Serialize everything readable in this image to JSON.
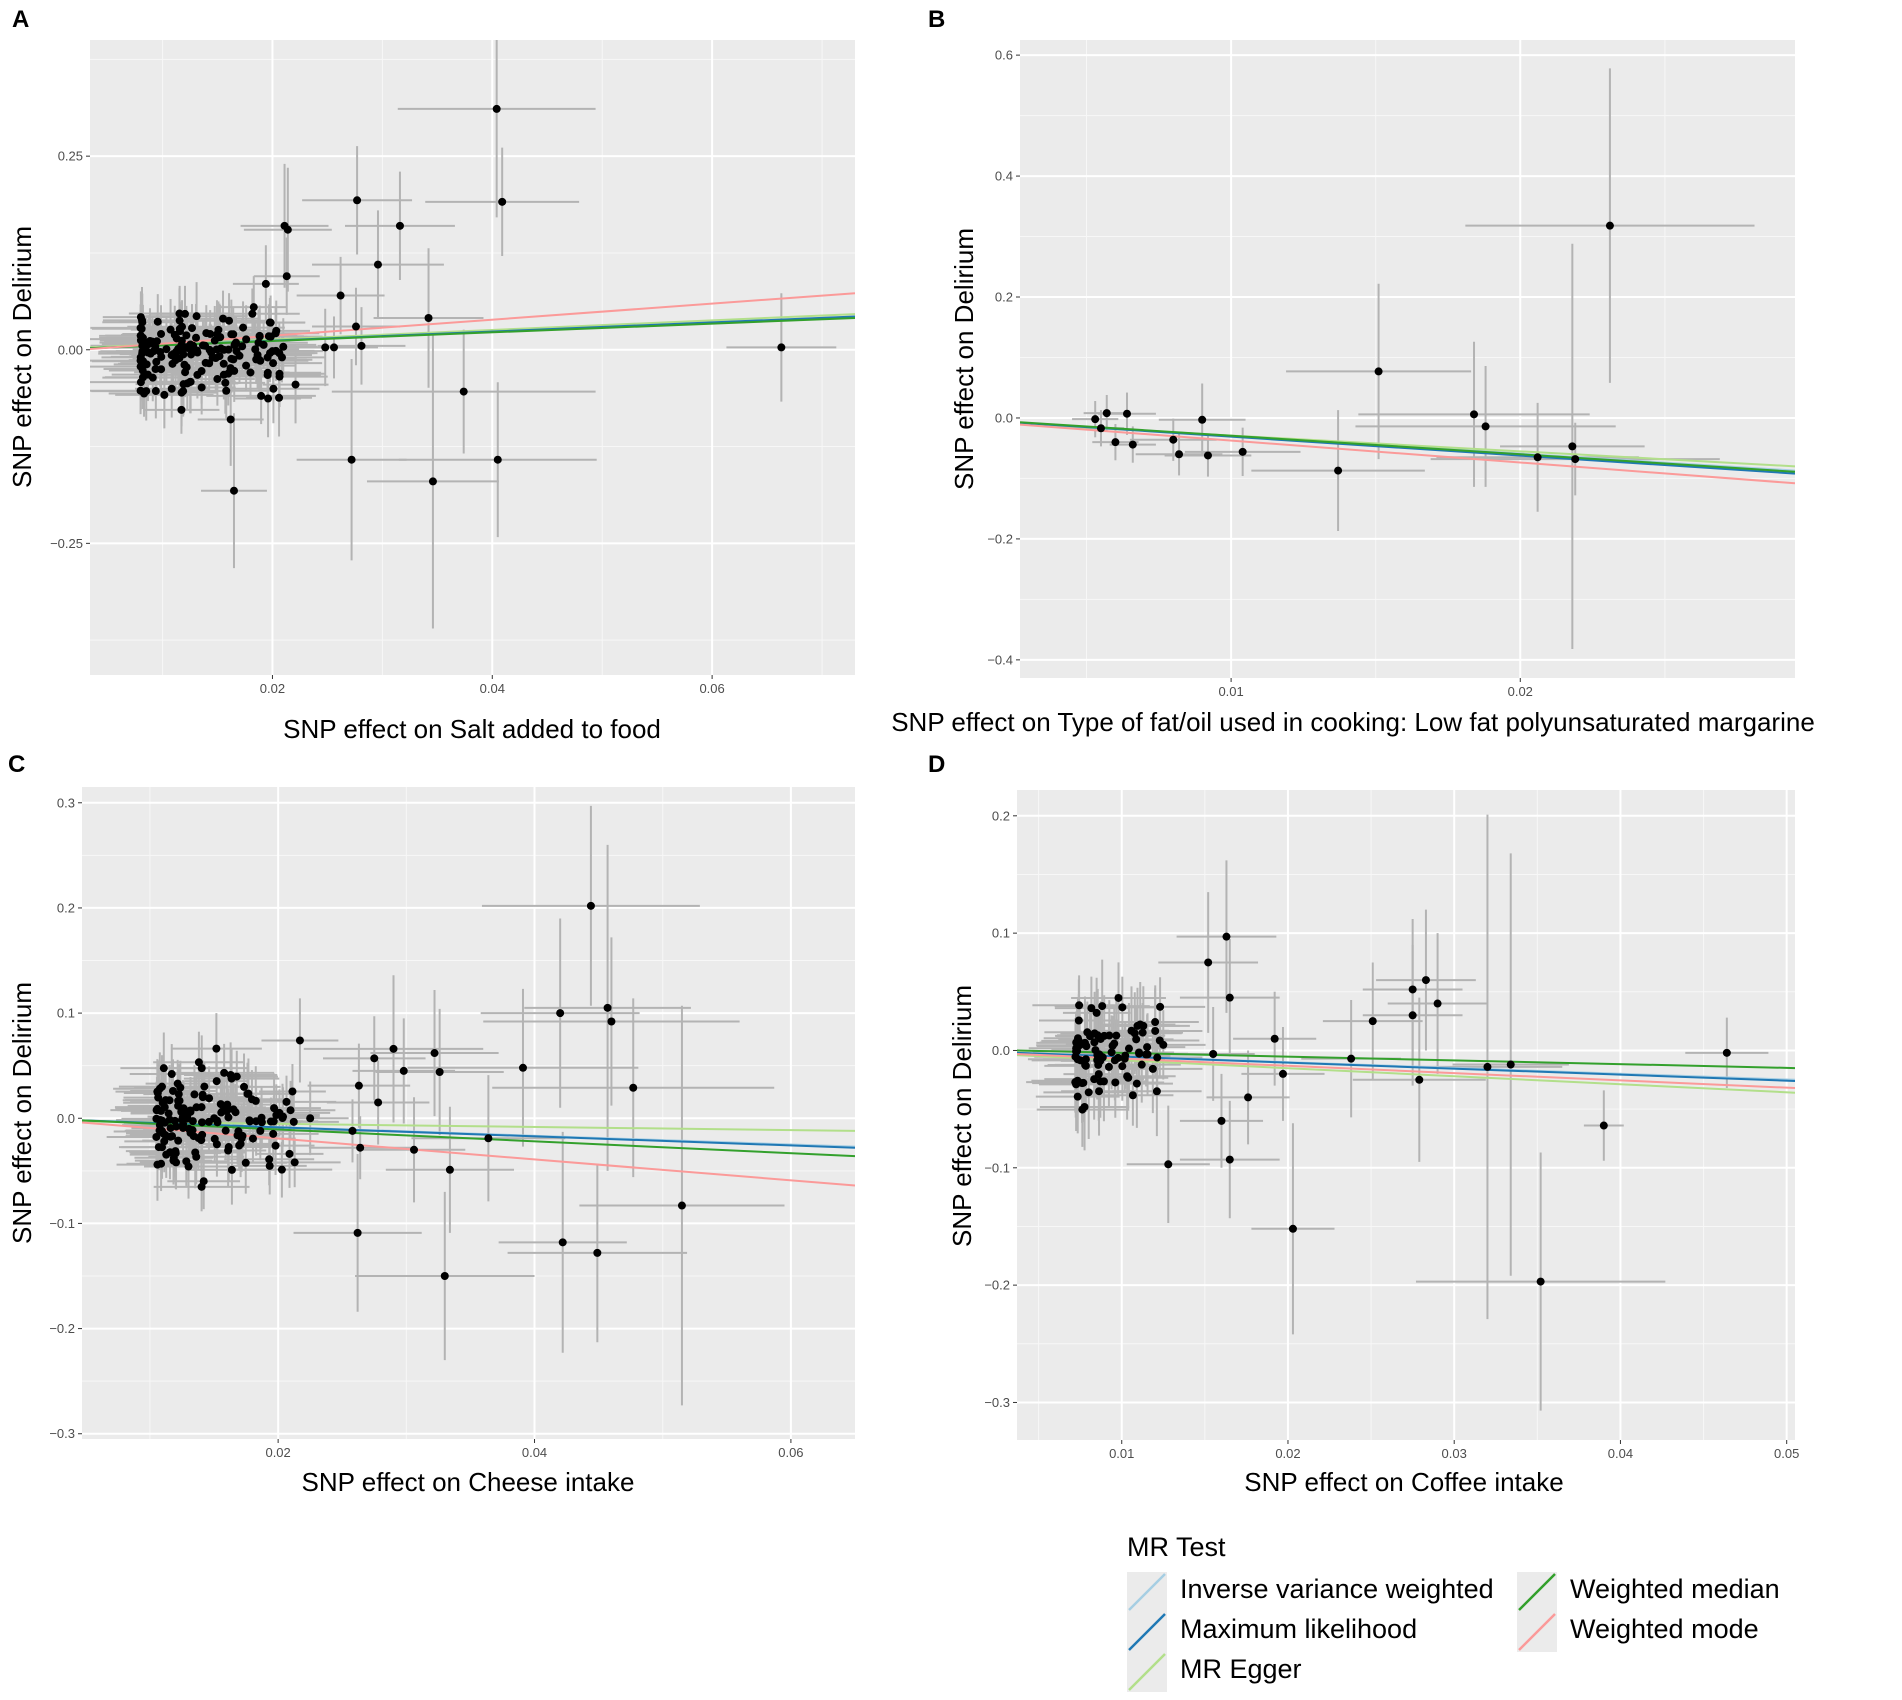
{
  "legend": {
    "title": "MR Test",
    "items": [
      {
        "label": "Inverse variance weighted",
        "color": "#a6cee3"
      },
      {
        "label": "Maximum likelihood",
        "color": "#1f78b4"
      },
      {
        "label": "MR Egger",
        "color": "#b2df8a"
      },
      {
        "label": "Weighted median",
        "color": "#33a02c"
      },
      {
        "label": "Weighted mode",
        "color": "#fb9a99"
      }
    ]
  },
  "chart_data": [
    {
      "panel": "A",
      "type": "scatter",
      "xlabel": "SNP effect on Salt added to food",
      "ylabel": "SNP effect on Delirium",
      "xlim": [
        0.0034,
        0.073
      ],
      "ylim": [
        -0.42,
        0.4
      ],
      "xticks": [
        {
          "v": 0.02,
          "label": "0.02"
        },
        {
          "v": 0.04,
          "label": "0.04"
        },
        {
          "v": 0.06,
          "label": "0.06"
        }
      ],
      "yticks": [
        {
          "v": 0.25,
          "label": "0.25"
        },
        {
          "v": 0.0,
          "label": "0.00"
        },
        {
          "v": -0.25,
          "label": "−0.25"
        }
      ],
      "dense_cluster": {
        "n": 170,
        "x_range": [
          0.008,
          0.021
        ],
        "y_center": 0.0,
        "y_sd": 0.026,
        "x_se_range": [
          0.003,
          0.005
        ],
        "y_se_range": [
          0.03,
          0.045
        ]
      },
      "points": [
        [
          0.0404,
          0.311,
          0.009,
          0.14
        ],
        [
          0.0409,
          0.191,
          0.007,
          0.07
        ],
        [
          0.0277,
          0.193,
          0.005,
          0.07
        ],
        [
          0.0316,
          0.16,
          0.005,
          0.07
        ],
        [
          0.0296,
          0.11,
          0.006,
          0.07
        ],
        [
          0.0214,
          0.155,
          0.004,
          0.08
        ],
        [
          0.0211,
          0.16,
          0.004,
          0.08
        ],
        [
          0.0342,
          0.041,
          0.005,
          0.09
        ],
        [
          0.0374,
          -0.054,
          0.012,
          0.08
        ],
        [
          0.0272,
          -0.142,
          0.005,
          0.13
        ],
        [
          0.0346,
          -0.17,
          0.006,
          0.19
        ],
        [
          0.0405,
          -0.142,
          0.009,
          0.1
        ],
        [
          0.0663,
          0.003,
          0.005,
          0.07
        ],
        [
          0.0165,
          -0.182,
          0.003,
          0.1
        ],
        [
          0.0248,
          0.003,
          0.004,
          0.05
        ],
        [
          0.0262,
          0.07,
          0.004,
          0.05
        ],
        [
          0.0276,
          0.03,
          0.004,
          0.05
        ],
        [
          0.0281,
          0.005,
          0.004,
          0.05
        ],
        [
          0.0256,
          0.003,
          0.004,
          0.04
        ],
        [
          0.0194,
          0.085,
          0.003,
          0.05
        ],
        [
          0.0213,
          0.095,
          0.003,
          0.05
        ],
        [
          0.0162,
          -0.09,
          0.003,
          0.06
        ],
        [
          0.0206,
          -0.062,
          0.003,
          0.05
        ],
        [
          0.0196,
          -0.063,
          0.003,
          0.05
        ],
        [
          0.0221,
          -0.045,
          0.003,
          0.05
        ],
        [
          0.0183,
          0.055,
          0.003,
          0.04
        ]
      ],
      "lines": [
        {
          "name": "Inverse variance weighted",
          "x": [
            0.0034,
            0.073
          ],
          "y": [
            0.002,
            0.042
          ]
        },
        {
          "name": "Maximum likelihood",
          "x": [
            0.0034,
            0.073
          ],
          "y": [
            0.002,
            0.043
          ]
        },
        {
          "name": "MR Egger",
          "x": [
            0.0034,
            0.073
          ],
          "y": [
            0.003,
            0.046
          ]
        },
        {
          "name": "Weighted median",
          "x": [
            0.0034,
            0.073
          ],
          "y": [
            0.002,
            0.041
          ]
        },
        {
          "name": "Weighted mode",
          "x": [
            0.0034,
            0.073
          ],
          "y": [
            0.001,
            0.073
          ]
        }
      ]
    },
    {
      "panel": "B",
      "type": "scatter",
      "xlabel": "SNP effect on Type of fat/oil used in cooking: Low fat polyunsaturated margarine",
      "ylabel": "SNP effect on Delirium",
      "xlim": [
        0.0027,
        0.0295
      ],
      "ylim": [
        -0.43,
        0.625
      ],
      "xticks": [
        {
          "v": 0.01,
          "label": "0.01"
        },
        {
          "v": 0.02,
          "label": "0.02"
        }
      ],
      "yticks": [
        {
          "v": 0.6,
          "label": "0.6"
        },
        {
          "v": 0.4,
          "label": "0.4"
        },
        {
          "v": 0.2,
          "label": "0.2"
        },
        {
          "v": 0.0,
          "label": "0.0"
        },
        {
          "v": -0.2,
          "label": "−0.2"
        },
        {
          "v": -0.4,
          "label": "−0.4"
        }
      ],
      "points": [
        [
          0.0231,
          0.318,
          0.005,
          0.26
        ],
        [
          0.0151,
          0.077,
          0.0032,
          0.145
        ],
        [
          0.0184,
          0.006,
          0.004,
          0.12
        ],
        [
          0.0188,
          -0.014,
          0.0045,
          0.1
        ],
        [
          0.0218,
          -0.047,
          0.0025,
          0.335
        ],
        [
          0.0219,
          -0.068,
          0.005,
          0.06
        ],
        [
          0.0206,
          -0.065,
          0.0035,
          0.09
        ],
        [
          0.0137,
          -0.087,
          0.003,
          0.1
        ],
        [
          0.0104,
          -0.056,
          0.002,
          0.04
        ],
        [
          0.0092,
          -0.062,
          0.0015,
          0.035
        ],
        [
          0.009,
          -0.003,
          0.0015,
          0.06
        ],
        [
          0.008,
          -0.036,
          0.0015,
          0.035
        ],
        [
          0.0082,
          -0.06,
          0.0015,
          0.035
        ],
        [
          0.0064,
          0.007,
          0.001,
          0.035
        ],
        [
          0.0057,
          0.008,
          0.0008,
          0.03
        ],
        [
          0.0053,
          -0.002,
          0.0008,
          0.03
        ],
        [
          0.0055,
          -0.017,
          0.0008,
          0.03
        ],
        [
          0.006,
          -0.04,
          0.0008,
          0.03
        ],
        [
          0.0066,
          -0.044,
          0.0008,
          0.03
        ]
      ],
      "lines": [
        {
          "name": "Inverse variance weighted",
          "x": [
            0.0027,
            0.0295
          ],
          "y": [
            -0.008,
            -0.087
          ]
        },
        {
          "name": "Maximum likelihood",
          "x": [
            0.0027,
            0.0295
          ],
          "y": [
            -0.008,
            -0.092
          ]
        },
        {
          "name": "MR Egger",
          "x": [
            0.0027,
            0.0295
          ],
          "y": [
            -0.01,
            -0.08
          ]
        },
        {
          "name": "Weighted median",
          "x": [
            0.0027,
            0.0295
          ],
          "y": [
            -0.007,
            -0.089
          ]
        },
        {
          "name": "Weighted mode",
          "x": [
            0.0027,
            0.0295
          ],
          "y": [
            -0.011,
            -0.108
          ]
        }
      ]
    },
    {
      "panel": "C",
      "type": "scatter",
      "xlabel": "SNP effect on Cheese intake",
      "ylabel": "SNP effect on Delirium",
      "xlim": [
        0.0047,
        0.065
      ],
      "ylim": [
        -0.305,
        0.315
      ],
      "xticks": [
        {
          "v": 0.02,
          "label": "0.02"
        },
        {
          "v": 0.04,
          "label": "0.04"
        },
        {
          "v": 0.06,
          "label": "0.06"
        }
      ],
      "yticks": [
        {
          "v": 0.3,
          "label": "0.3"
        },
        {
          "v": 0.2,
          "label": "0.2"
        },
        {
          "v": 0.1,
          "label": "0.1"
        },
        {
          "v": 0.0,
          "label": "0.0"
        },
        {
          "v": -0.1,
          "label": "−0.1"
        },
        {
          "v": -0.2,
          "label": "−0.2"
        },
        {
          "v": -0.3,
          "label": "−0.3"
        }
      ],
      "dense_cluster": {
        "n": 150,
        "x_range": [
          0.0105,
          0.0215
        ],
        "y_center": -0.005,
        "y_sd": 0.025,
        "x_se_range": [
          0.0025,
          0.004
        ],
        "y_se_range": [
          0.022,
          0.035
        ]
      },
      "points": [
        [
          0.0444,
          0.202,
          0.0085,
          0.095
        ],
        [
          0.042,
          0.1,
          0.0062,
          0.09
        ],
        [
          0.0457,
          0.105,
          0.0065,
          0.155
        ],
        [
          0.046,
          0.092,
          0.01,
          0.08
        ],
        [
          0.0391,
          0.048,
          0.009,
          0.075
        ],
        [
          0.0477,
          0.029,
          0.011,
          0.085
        ],
        [
          0.029,
          0.066,
          0.007,
          0.07
        ],
        [
          0.0298,
          0.045,
          0.004,
          0.05
        ],
        [
          0.0322,
          0.062,
          0.005,
          0.06
        ],
        [
          0.0326,
          0.044,
          0.005,
          0.06
        ],
        [
          0.0364,
          -0.019,
          0.006,
          0.06
        ],
        [
          0.0306,
          -0.03,
          0.004,
          0.05
        ],
        [
          0.0334,
          -0.049,
          0.005,
          0.06
        ],
        [
          0.0275,
          0.057,
          0.004,
          0.04
        ],
        [
          0.0278,
          0.015,
          0.004,
          0.04
        ],
        [
          0.0263,
          0.031,
          0.004,
          0.04
        ],
        [
          0.0262,
          -0.109,
          0.005,
          0.075
        ],
        [
          0.033,
          -0.15,
          0.007,
          0.08
        ],
        [
          0.0422,
          -0.118,
          0.005,
          0.105
        ],
        [
          0.0449,
          -0.128,
          0.007,
          0.085
        ],
        [
          0.0515,
          -0.083,
          0.008,
          0.19
        ],
        [
          0.0217,
          0.074,
          0.003,
          0.04
        ],
        [
          0.0225,
          0.0,
          0.003,
          0.035
        ],
        [
          0.0264,
          -0.028,
          0.004,
          0.03
        ],
        [
          0.0258,
          -0.012,
          0.003,
          0.03
        ]
      ],
      "lines": [
        {
          "name": "Inverse variance weighted",
          "x": [
            0.0047,
            0.065
          ],
          "y": [
            -0.002,
            -0.027
          ]
        },
        {
          "name": "Maximum likelihood",
          "x": [
            0.0047,
            0.065
          ],
          "y": [
            -0.002,
            -0.028
          ]
        },
        {
          "name": "MR Egger",
          "x": [
            0.0047,
            0.065
          ],
          "y": [
            -0.003,
            -0.012
          ]
        },
        {
          "name": "Weighted median",
          "x": [
            0.0047,
            0.065
          ],
          "y": [
            -0.002,
            -0.036
          ]
        },
        {
          "name": "Weighted mode",
          "x": [
            0.0047,
            0.065
          ],
          "y": [
            -0.004,
            -0.064
          ]
        }
      ]
    },
    {
      "panel": "D",
      "type": "scatter",
      "xlabel": "SNP effect on Coffee intake",
      "ylabel": "SNP effect on Delirium",
      "xlim": [
        0.0037,
        0.0505
      ],
      "ylim": [
        -0.332,
        0.222
      ],
      "xticks": [
        {
          "v": 0.01,
          "label": "0.01"
        },
        {
          "v": 0.02,
          "label": "0.02"
        },
        {
          "v": 0.03,
          "label": "0.03"
        },
        {
          "v": 0.04,
          "label": "0.04"
        },
        {
          "v": 0.05,
          "label": "0.05"
        }
      ],
      "yticks": [
        {
          "v": 0.2,
          "label": "0.2"
        },
        {
          "v": 0.1,
          "label": "0.1"
        },
        {
          "v": 0.0,
          "label": "0.0"
        },
        {
          "v": -0.1,
          "label": "−0.1"
        },
        {
          "v": -0.2,
          "label": "−0.2"
        },
        {
          "v": -0.3,
          "label": "−0.3"
        }
      ],
      "dense_cluster": {
        "n": 90,
        "x_range": [
          0.0072,
          0.0125
        ],
        "y_center": 0.0,
        "y_sd": 0.022,
        "x_se_range": [
          0.002,
          0.003
        ],
        "y_se_range": [
          0.025,
          0.04
        ]
      },
      "points": [
        [
          0.0464,
          -0.002,
          0.0025,
          0.03
        ],
        [
          0.039,
          -0.064,
          0.0012,
          0.03
        ],
        [
          0.0352,
          -0.197,
          0.0075,
          0.11
        ],
        [
          0.032,
          -0.014,
          0.0045,
          0.215
        ],
        [
          0.0334,
          -0.012,
          0.0035,
          0.18
        ],
        [
          0.0279,
          -0.025,
          0.004,
          0.07
        ],
        [
          0.0275,
          0.052,
          0.003,
          0.06
        ],
        [
          0.0275,
          0.03,
          0.003,
          0.06
        ],
        [
          0.0283,
          0.06,
          0.003,
          0.06
        ],
        [
          0.029,
          0.04,
          0.003,
          0.06
        ],
        [
          0.0251,
          0.025,
          0.003,
          0.05
        ],
        [
          0.0238,
          -0.007,
          0.003,
          0.05
        ],
        [
          0.0203,
          -0.152,
          0.0025,
          0.09
        ],
        [
          0.0163,
          0.097,
          0.003,
          0.065
        ],
        [
          0.0152,
          0.075,
          0.003,
          0.06
        ],
        [
          0.0165,
          0.045,
          0.003,
          0.05
        ],
        [
          0.0165,
          -0.093,
          0.003,
          0.05
        ],
        [
          0.0192,
          0.01,
          0.0025,
          0.04
        ],
        [
          0.0197,
          -0.02,
          0.0025,
          0.04
        ],
        [
          0.0176,
          -0.04,
          0.0025,
          0.04
        ],
        [
          0.016,
          -0.06,
          0.0025,
          0.04
        ],
        [
          0.0128,
          -0.097,
          0.0025,
          0.05
        ],
        [
          0.0155,
          -0.003,
          0.0025,
          0.04
        ]
      ],
      "lines": [
        {
          "name": "Inverse variance weighted",
          "x": [
            0.0037,
            0.0505
          ],
          "y": [
            -0.002,
            -0.025
          ]
        },
        {
          "name": "Maximum likelihood",
          "x": [
            0.0037,
            0.0505
          ],
          "y": [
            -0.002,
            -0.026
          ]
        },
        {
          "name": "MR Egger",
          "x": [
            0.0037,
            0.0505
          ],
          "y": [
            -0.004,
            -0.036
          ]
        },
        {
          "name": "Weighted median",
          "x": [
            0.0037,
            0.0505
          ],
          "y": [
            0.0,
            -0.015
          ]
        },
        {
          "name": "Weighted mode",
          "x": [
            0.0037,
            0.0505
          ],
          "y": [
            -0.003,
            -0.032
          ]
        }
      ]
    }
  ]
}
